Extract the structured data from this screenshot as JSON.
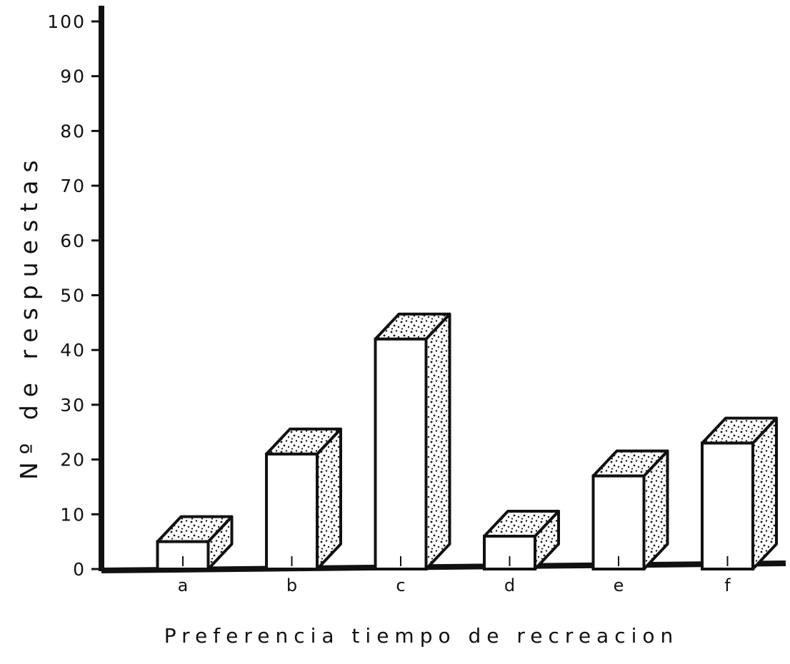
{
  "chart_data": {
    "type": "bar",
    "style": "3d-stippled",
    "title": "",
    "xlabel": "Preferencia tiempo de recreacion",
    "ylabel": "Nº de respuestas",
    "categories": [
      "a",
      "b",
      "c",
      "d",
      "e",
      "f"
    ],
    "values": [
      5,
      21,
      42,
      6,
      17,
      23
    ],
    "ylim": [
      0,
      100
    ],
    "yticks": [
      0,
      10,
      20,
      30,
      40,
      50,
      60,
      70,
      80,
      90,
      100
    ],
    "ytick_labels": [
      "0",
      "10",
      "20",
      "30",
      "40",
      "50",
      "60",
      "70",
      "80",
      "90",
      "100"
    ],
    "grid": false,
    "legend": "none",
    "colors": {
      "ink": "#111111",
      "bar_front": "#ffffff",
      "stipple": "#111111"
    }
  }
}
